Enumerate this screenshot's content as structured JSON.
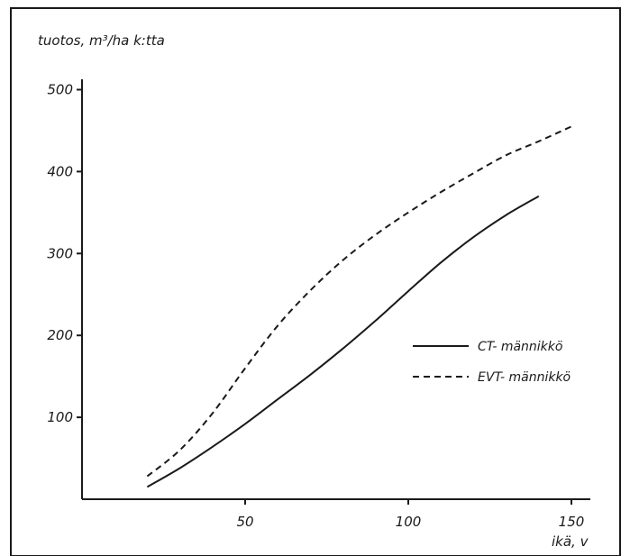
{
  "chart_data": {
    "type": "line",
    "ylabel": "tuotos, m³/ha k:tta",
    "xlabel": "ikä, v",
    "xlim": [
      0,
      155
    ],
    "ylim": [
      0,
      520
    ],
    "xticks": [
      50,
      100,
      150
    ],
    "yticks": [
      100,
      200,
      300,
      400,
      500
    ],
    "grid": false,
    "legend_position": "right",
    "series": [
      {
        "name": "CT- männikkö",
        "style": "solid",
        "color": "#1a1a1a",
        "x": [
          20,
          30,
          40,
          50,
          60,
          70,
          80,
          90,
          100,
          110,
          120,
          130,
          140
        ],
        "y": [
          15,
          38,
          64,
          92,
          122,
          152,
          184,
          218,
          254,
          289,
          320,
          347,
          370
        ]
      },
      {
        "name": "EVT- männikkö",
        "style": "dashed",
        "color": "#1a1a1a",
        "x": [
          20,
          30,
          40,
          50,
          60,
          70,
          80,
          90,
          100,
          110,
          120,
          130,
          140,
          150
        ],
        "y": [
          28,
          60,
          105,
          160,
          212,
          255,
          292,
          323,
          350,
          375,
          398,
          420,
          437,
          455
        ]
      }
    ]
  }
}
